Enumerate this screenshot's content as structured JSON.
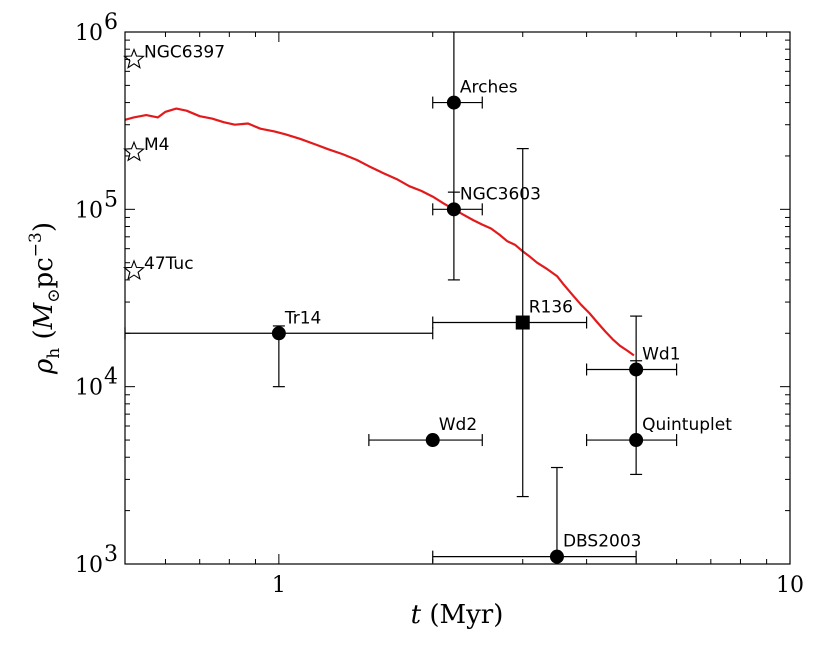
{
  "chart_data": {
    "type": "scatter",
    "title": "",
    "xlabel": "t (Myr)",
    "ylabel": "ρh (M⊙pc−3)",
    "xscale": "log",
    "yscale": "log",
    "xlim": [
      0.5,
      10
    ],
    "ylim": [
      1000,
      1000000
    ],
    "x_ticks": [
      {
        "value": 1,
        "label": "1"
      },
      {
        "value": 10,
        "label": "10"
      }
    ],
    "y_ticks": [
      {
        "value": 1000,
        "base": "10",
        "exp": "3"
      },
      {
        "value": 10000,
        "base": "10",
        "exp": "4"
      },
      {
        "value": 100000,
        "base": "10",
        "exp": "5"
      },
      {
        "value": 1000000,
        "base": "10",
        "exp": "6"
      }
    ],
    "grid": false,
    "curve": {
      "color": "#e31a1c",
      "points": [
        [
          0.5,
          320000
        ],
        [
          0.52,
          330000
        ],
        [
          0.55,
          340000
        ],
        [
          0.58,
          330000
        ],
        [
          0.6,
          355000
        ],
        [
          0.63,
          370000
        ],
        [
          0.66,
          360000
        ],
        [
          0.7,
          335000
        ],
        [
          0.74,
          325000
        ],
        [
          0.78,
          310000
        ],
        [
          0.82,
          300000
        ],
        [
          0.87,
          305000
        ],
        [
          0.92,
          285000
        ],
        [
          0.98,
          275000
        ],
        [
          1.03,
          265000
        ],
        [
          1.1,
          250000
        ],
        [
          1.18,
          232000
        ],
        [
          1.25,
          218000
        ],
        [
          1.33,
          205000
        ],
        [
          1.42,
          190000
        ],
        [
          1.5,
          175000
        ],
        [
          1.6,
          160000
        ],
        [
          1.7,
          148000
        ],
        [
          1.8,
          135000
        ],
        [
          1.9,
          127000
        ],
        [
          2.0,
          118000
        ],
        [
          2.1,
          108000
        ],
        [
          2.2,
          100000
        ],
        [
          2.3,
          93000
        ],
        [
          2.4,
          87000
        ],
        [
          2.5,
          82000
        ],
        [
          2.6,
          78000
        ],
        [
          2.7,
          72000
        ],
        [
          2.8,
          66000
        ],
        [
          2.9,
          63000
        ],
        [
          3.0,
          58000
        ],
        [
          3.1,
          54000
        ],
        [
          3.2,
          50000
        ],
        [
          3.35,
          46000
        ],
        [
          3.5,
          42000
        ],
        [
          3.6,
          38000
        ],
        [
          3.75,
          33000
        ],
        [
          3.9,
          29000
        ],
        [
          4.05,
          26000
        ],
        [
          4.2,
          23000
        ],
        [
          4.35,
          20500
        ],
        [
          4.5,
          18500
        ],
        [
          4.65,
          17000
        ],
        [
          4.8,
          16000
        ],
        [
          4.95,
          15000
        ]
      ]
    },
    "points": [
      {
        "name": "Arches",
        "x": 2.2,
        "y": 400000,
        "xlo": 2.0,
        "xhi": 2.5,
        "ylo": 100000,
        "yhi": 1000000,
        "marker": "circle"
      },
      {
        "name": "NGC3603",
        "x": 2.2,
        "y": 100000,
        "xlo": 2.0,
        "xhi": 2.5,
        "ylo": 40000,
        "yhi": 125000,
        "marker": "circle"
      },
      {
        "name": "R136",
        "x": 3.0,
        "y": 23000,
        "xlo": 2.0,
        "xhi": 4.0,
        "ylo": 2400,
        "yhi": 220000,
        "marker": "square"
      },
      {
        "name": "Tr14",
        "x": 1.0,
        "y": 20000,
        "xlo": 0.5,
        "xhi": 2.0,
        "ylo": 10000,
        "yhi": 22000,
        "marker": "circle"
      },
      {
        "name": "Wd1",
        "x": 5.0,
        "y": 12500,
        "xlo": 4.0,
        "xhi": 6.0,
        "ylo": 5000,
        "yhi": 25000,
        "marker": "circle"
      },
      {
        "name": "Wd2",
        "x": 2.0,
        "y": 5000,
        "xlo": 1.5,
        "xhi": 2.5,
        "ylo": 5000,
        "yhi": 5000,
        "marker": "circle"
      },
      {
        "name": "Quintuplet",
        "x": 5.0,
        "y": 5000,
        "xlo": 4.0,
        "xhi": 6.0,
        "ylo": 3200,
        "yhi": 14000,
        "marker": "circle"
      },
      {
        "name": "DBS2003",
        "x": 3.5,
        "y": 1100,
        "xlo": 2.0,
        "xhi": 5.0,
        "ylo": 1000,
        "yhi": 3500,
        "marker": "circle"
      }
    ],
    "globulars": [
      {
        "name": "NGC6397",
        "x": 0.5,
        "y": 700000,
        "marker": "star"
      },
      {
        "name": "M4",
        "x": 0.5,
        "y": 210000,
        "marker": "star"
      },
      {
        "name": "47Tuc",
        "x": 0.5,
        "y": 45000,
        "marker": "star"
      }
    ]
  }
}
